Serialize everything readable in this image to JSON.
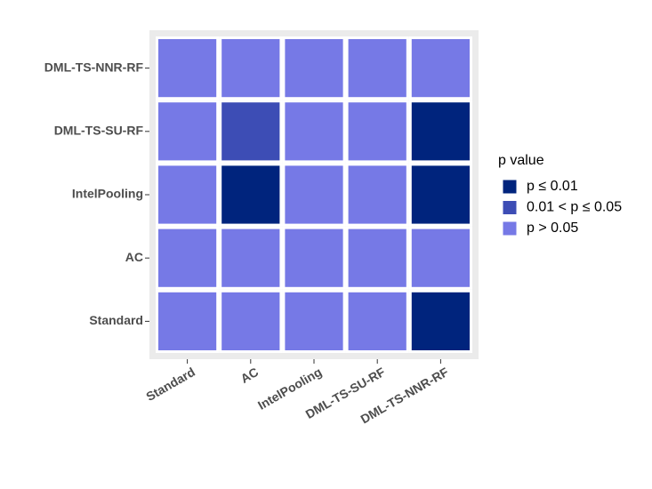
{
  "chart_data": {
    "type": "heatmap",
    "x_categories": [
      "Standard",
      "AC",
      "IntelPooling",
      "DML-TS-SU-RF",
      "DML-TS-NNR-RF"
    ],
    "y_categories": [
      "Standard",
      "AC",
      "IntelPooling",
      "DML-TS-SU-RF",
      "DML-TS-NNR-RF"
    ],
    "z": [
      [
        "p > 0.05",
        "p > 0.05",
        "p > 0.05",
        "p > 0.05",
        "p ≤ 0.01"
      ],
      [
        "p > 0.05",
        "p > 0.05",
        "p > 0.05",
        "p > 0.05",
        "p > 0.05"
      ],
      [
        "p > 0.05",
        "p ≤ 0.01",
        "p > 0.05",
        "p > 0.05",
        "p ≤ 0.01"
      ],
      [
        "p > 0.05",
        "0.01 < p ≤ 0.05",
        "p > 0.05",
        "p > 0.05",
        "p ≤ 0.01"
      ],
      [
        "p > 0.05",
        "p > 0.05",
        "p > 0.05",
        "p > 0.05",
        "p > 0.05"
      ]
    ],
    "legend_title": "p value",
    "legend": [
      {
        "name": "p ≤ 0.01",
        "color": "#00247d"
      },
      {
        "name": "0.01 < p ≤ 0.05",
        "color": "#3d4db5"
      },
      {
        "name": "p > 0.05",
        "color": "#7679e6"
      }
    ]
  }
}
